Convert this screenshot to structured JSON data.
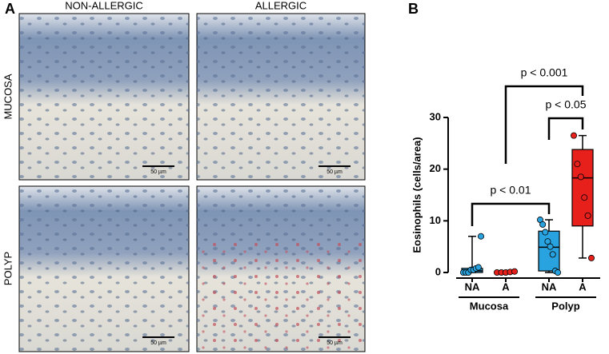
{
  "panel_a": {
    "label": "A",
    "columns": [
      "NON-ALLERGIC",
      "ALLERGIC"
    ],
    "rows": [
      "MUCOSA",
      "POLYP"
    ],
    "scale_bars": [
      "50 µm",
      "50 µm",
      "50 µm",
      "50 µm"
    ]
  },
  "chart_data": {
    "type": "box",
    "panel_label": "B",
    "y_label": "Eosinophils (cells/area)",
    "ylim": [
      0,
      30
    ],
    "yticks": [
      0,
      10,
      20,
      30
    ],
    "categories": [
      "NA",
      "A",
      "NA",
      "A"
    ],
    "group_labels": [
      "Mucosa",
      "Polyp"
    ],
    "boxes": [
      {
        "color": "#29a3e0",
        "min": 0,
        "q1": 0,
        "median": 0.3,
        "q3": 0.8,
        "max": 7,
        "points": [
          0,
          0,
          0,
          0.5,
          0.5,
          0.8,
          1,
          7
        ]
      },
      {
        "color": "#e8201c",
        "min": 0,
        "q1": 0,
        "median": 0,
        "q3": 0.1,
        "max": 0.2,
        "points": [
          0,
          0,
          0,
          0.1,
          0.2
        ]
      },
      {
        "color": "#29a3e0",
        "min": 0,
        "q1": 0.3,
        "median": 4.9,
        "q3": 8,
        "max": 10.2,
        "points": [
          10.2,
          9.3,
          7.8,
          6,
          5,
          3.5,
          0.3,
          0
        ]
      },
      {
        "color": "#e8201c",
        "min": 2.8,
        "q1": 9,
        "median": 18.3,
        "q3": 23.8,
        "max": 26.5,
        "points": [
          26.5,
          21,
          18.5,
          14.5,
          11,
          2.8
        ]
      }
    ],
    "annotations": [
      {
        "text": "p < 0.01",
        "between": [
          0,
          2
        ]
      },
      {
        "text": "p < 0.05",
        "between": [
          2,
          3
        ]
      },
      {
        "text": "p < 0.001",
        "between": [
          1,
          3
        ]
      }
    ]
  }
}
